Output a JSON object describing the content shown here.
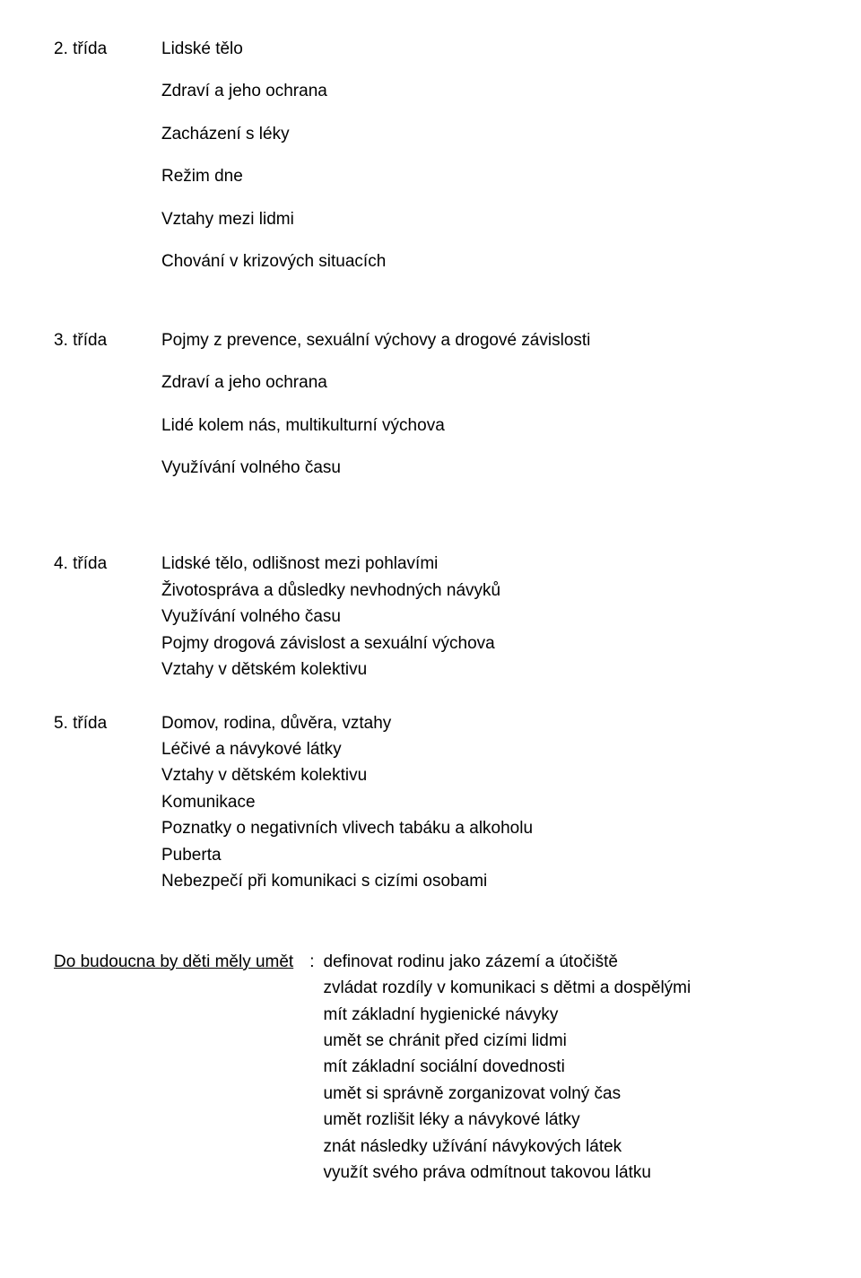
{
  "section2": {
    "label": "2. třída",
    "items": [
      "Lidské tělo",
      "Zdraví a jeho ochrana",
      "Zacházení s léky",
      "Režim dne",
      "Vztahy mezi lidmi",
      "Chování v krizových situacích"
    ]
  },
  "section3": {
    "label": "3. třída",
    "items": [
      "Pojmy z prevence, sexuální výchovy a drogové závislosti",
      "Zdraví a jeho ochrana",
      "Lidé kolem nás, multikulturní výchova",
      "Využívání volného času"
    ]
  },
  "section4": {
    "label": "4. třída",
    "items": [
      "Lidské tělo, odlišnost mezi pohlavími",
      "Životospráva a důsledky nevhodných návyků",
      "Využívání volného času",
      "Pojmy drogová závislost a sexuální výchova",
      "Vztahy v dětském kolektivu"
    ]
  },
  "section5": {
    "label": "5. třída",
    "items": [
      "Domov, rodina, důvěra, vztahy",
      "Léčivé a návykové látky",
      "Vztahy v dětském kolektivu",
      "Komunikace",
      "Poznatky o negativních vlivech tabáku a alkoholu",
      "Puberta",
      "Nebezpečí při komunikaci s cizími osobami"
    ]
  },
  "future": {
    "label": "Do budoucna by děti měly umět",
    "colon": ":",
    "items": [
      "definovat rodinu jako zázemí a útočiště",
      "zvládat rozdíly v komunikaci s dětmi a dospělými",
      "mít základní hygienické návyky",
      "umět se chránit před cizími lidmi",
      "mít základní sociální dovednosti",
      "umět si správně zorganizovat volný čas",
      "umět rozlišit léky a návykové látky",
      "znát následky užívání návykových látek",
      "využít svého práva odmítnout takovou látku"
    ]
  },
  "colors": {
    "background": "#ffffff",
    "text": "#000000"
  },
  "typography": {
    "font_family": "Comic Sans MS",
    "font_size_pt": 14
  }
}
